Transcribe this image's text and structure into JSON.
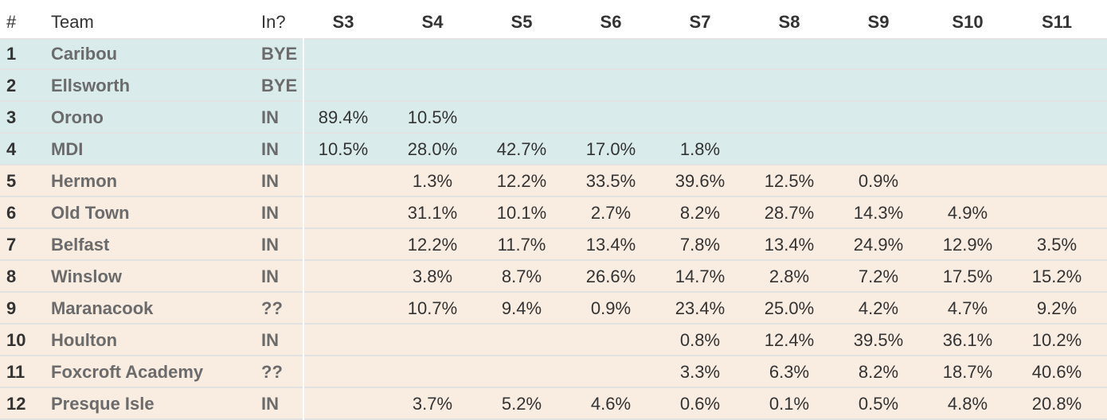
{
  "table": {
    "header": [
      "#",
      "Team",
      "In?",
      "S3",
      "S4",
      "S5",
      "S6",
      "S7",
      "S8",
      "S9",
      "S10",
      "S11"
    ],
    "rows": [
      {
        "rank": 1,
        "team": "Caribou",
        "status": "BYE",
        "values": [
          null,
          null,
          null,
          null,
          null,
          null,
          null,
          null,
          null
        ]
      },
      {
        "rank": 2,
        "team": "Ellsworth",
        "status": "BYE",
        "values": [
          null,
          null,
          null,
          null,
          null,
          null,
          null,
          null,
          null
        ]
      },
      {
        "rank": 3,
        "team": "Orono",
        "status": "IN",
        "values": [
          "89.4%",
          "10.5%",
          null,
          null,
          null,
          null,
          null,
          null,
          null
        ]
      },
      {
        "rank": 4,
        "team": "MDI",
        "status": "IN",
        "values": [
          "10.5%",
          "28.0%",
          "42.7%",
          "17.0%",
          "1.8%",
          null,
          null,
          null,
          null
        ]
      },
      {
        "rank": 5,
        "team": "Hermon",
        "status": "IN",
        "values": [
          null,
          "1.3%",
          "12.2%",
          "33.5%",
          "39.6%",
          "12.5%",
          "0.9%",
          null,
          null
        ]
      },
      {
        "rank": 6,
        "team": "Old Town",
        "status": "IN",
        "values": [
          null,
          "31.1%",
          "10.1%",
          "2.7%",
          "8.2%",
          "28.7%",
          "14.3%",
          "4.9%",
          null
        ]
      },
      {
        "rank": 7,
        "team": "Belfast",
        "status": "IN",
        "values": [
          null,
          "12.2%",
          "11.7%",
          "13.4%",
          "7.8%",
          "13.4%",
          "24.9%",
          "12.9%",
          "3.5%"
        ]
      },
      {
        "rank": 8,
        "team": "Winslow",
        "status": "IN",
        "values": [
          null,
          "3.8%",
          "8.7%",
          "26.6%",
          "14.7%",
          "2.8%",
          "7.2%",
          "17.5%",
          "15.2%"
        ]
      },
      {
        "rank": 9,
        "team": "Maranacook",
        "status": "??",
        "values": [
          null,
          "10.7%",
          "9.4%",
          "0.9%",
          "23.4%",
          "25.0%",
          "4.2%",
          "4.7%",
          "9.2%"
        ]
      },
      {
        "rank": 10,
        "team": "Houlton",
        "status": "IN",
        "values": [
          null,
          null,
          null,
          null,
          "0.8%",
          "12.4%",
          "39.5%",
          "36.1%",
          "10.2%"
        ]
      },
      {
        "rank": 11,
        "team": "Foxcroft Academy",
        "status": "??",
        "values": [
          null,
          null,
          null,
          null,
          "3.3%",
          "6.3%",
          "8.2%",
          "18.7%",
          "40.6%"
        ]
      },
      {
        "rank": 12,
        "team": "Presque Isle",
        "status": "IN",
        "values": [
          null,
          "3.7%",
          "5.2%",
          "4.6%",
          "0.6%",
          "0.1%",
          "0.5%",
          "4.8%",
          "20.8%"
        ]
      }
    ]
  }
}
